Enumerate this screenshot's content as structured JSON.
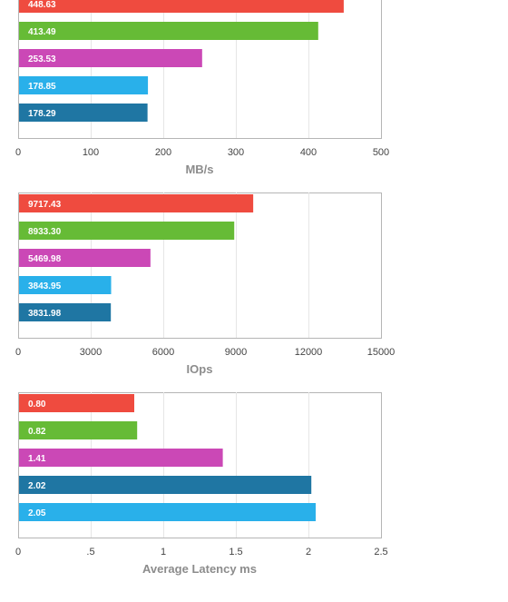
{
  "chart_data": [
    {
      "type": "bar",
      "orientation": "horizontal",
      "xlabel": "MB/s",
      "xlim": [
        0,
        500
      ],
      "ticks": [
        "0",
        "100",
        "200",
        "300",
        "400",
        "500"
      ],
      "grid": true,
      "bars": [
        {
          "label": "448.63",
          "value": 448.63,
          "color": "#ef4b3f"
        },
        {
          "label": "413.49",
          "value": 413.49,
          "color": "#66bb36"
        },
        {
          "label": "253.53",
          "value": 253.53,
          "color": "#cb48b6"
        },
        {
          "label": "178.85",
          "value": 178.85,
          "color": "#29b0ea"
        },
        {
          "label": "178.29",
          "value": 178.29,
          "color": "#1f76a3"
        }
      ]
    },
    {
      "type": "bar",
      "orientation": "horizontal",
      "xlabel": "IOps",
      "xlim": [
        0,
        15000
      ],
      "ticks": [
        "0",
        "3000",
        "6000",
        "9000",
        "12000",
        "15000"
      ],
      "grid": true,
      "bars": [
        {
          "label": "9717.43",
          "value": 9717.43,
          "color": "#ef4b3f"
        },
        {
          "label": "8933.30",
          "value": 8933.3,
          "color": "#66bb36"
        },
        {
          "label": "5469.98",
          "value": 5469.98,
          "color": "#cb48b6"
        },
        {
          "label": "3843.95",
          "value": 3843.95,
          "color": "#29b0ea"
        },
        {
          "label": "3831.98",
          "value": 3831.98,
          "color": "#1f76a3"
        }
      ]
    },
    {
      "type": "bar",
      "orientation": "horizontal",
      "xlabel": "Average Latency ms",
      "xlim": [
        0,
        2.5
      ],
      "ticks": [
        "0",
        ".5",
        "1",
        "1.5",
        "2",
        "2.5"
      ],
      "grid": true,
      "bars": [
        {
          "label": "0.80",
          "value": 0.8,
          "color": "#ef4b3f"
        },
        {
          "label": "0.82",
          "value": 0.82,
          "color": "#66bb36"
        },
        {
          "label": "1.41",
          "value": 1.41,
          "color": "#cb48b6"
        },
        {
          "label": "2.02",
          "value": 2.02,
          "color": "#1f76a3"
        },
        {
          "label": "2.05",
          "value": 2.05,
          "color": "#29b0ea"
        }
      ]
    }
  ]
}
